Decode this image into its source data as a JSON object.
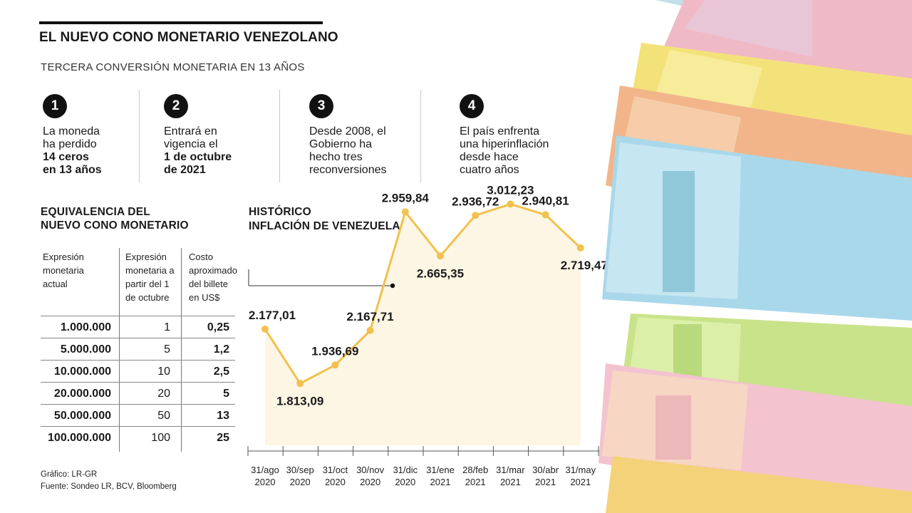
{
  "header": {
    "title": "EL NUEVO CONO MONETARIO VENEZOLANO",
    "subtitle": "TERCERA CONVERSIÓN MONETARIA EN 13 AÑOS"
  },
  "facts": [
    {
      "number": "1",
      "lines": [
        "La moneda",
        "ha perdido"
      ],
      "bold": [
        "14 ceros",
        "en 13 años"
      ]
    },
    {
      "number": "2",
      "lines": [
        "Entrará en",
        "vigencia el"
      ],
      "bold": [
        "1 de octubre",
        "de 2021"
      ]
    },
    {
      "number": "3",
      "lines": [
        "Desde 2008, el",
        "Gobierno ha",
        "hecho tres",
        "reconversiones"
      ],
      "bold": []
    },
    {
      "number": "4",
      "lines": [
        "El país enfrenta",
        "una hiperinflación",
        "desde hace",
        "cuatro años"
      ],
      "bold": []
    }
  ],
  "equivalence": {
    "title": [
      "EQUIVALENCIA DEL",
      "NUEVO CONO MONETARIO"
    ],
    "headers": [
      [
        "Expresión",
        "monetaria",
        "actual"
      ],
      [
        "Expresión",
        "monetaria a",
        "partir del 1",
        "de octubre"
      ],
      [
        "Costo",
        "aproximado",
        "del billete",
        "en US$"
      ]
    ],
    "rows": [
      [
        "1.000.000",
        "1",
        "0,25"
      ],
      [
        "5.000.000",
        "5",
        "1,2"
      ],
      [
        "10.000.000",
        "10",
        "2,5"
      ],
      [
        "20.000.000",
        "20",
        "5"
      ],
      [
        "50.000.000",
        "50",
        "13"
      ],
      [
        "100.000.000",
        "100",
        "25"
      ]
    ]
  },
  "credits": {
    "graphic": "Gráfico: LR-GR",
    "source": "Fuente: Sondeo LR, BCV, Bloomberg"
  },
  "colors": {
    "line": "#f2c14e",
    "fill": "#fdf6e4",
    "text": "#1a1a1a"
  },
  "chart_data": {
    "type": "line",
    "title": [
      "HISTÓRICO",
      "INFLACIÓN DE VENEZUELA"
    ],
    "categories": [
      [
        "31/ago",
        "2020"
      ],
      [
        "30/sep",
        "2020"
      ],
      [
        "31/oct",
        "2020"
      ],
      [
        "30/nov",
        "2020"
      ],
      [
        "31/dic",
        "2020"
      ],
      [
        "31/ene",
        "2021"
      ],
      [
        "28/feb",
        "2021"
      ],
      [
        "31/mar",
        "2021"
      ],
      [
        "30/abr",
        "2021"
      ],
      [
        "31/may",
        "2021"
      ]
    ],
    "values": [
      2177.01,
      1813.09,
      1936.69,
      2167.71,
      2959.84,
      2665.35,
      2936.72,
      3012.23,
      2940.81,
      2719.47
    ],
    "labels": [
      "2.177,01",
      "1.813,09",
      "1.936,69",
      "2.167,71",
      "2.959,84",
      "2.665,35",
      "2.936,72",
      "3.012,23",
      "2.940,81",
      "2.719,47"
    ],
    "label_positions": [
      "above",
      "below",
      "above",
      "above",
      "above",
      "below",
      "above",
      "above",
      "above",
      "below"
    ],
    "ylim": [
      1400,
      3200
    ],
    "grid": false,
    "legend": "none"
  }
}
